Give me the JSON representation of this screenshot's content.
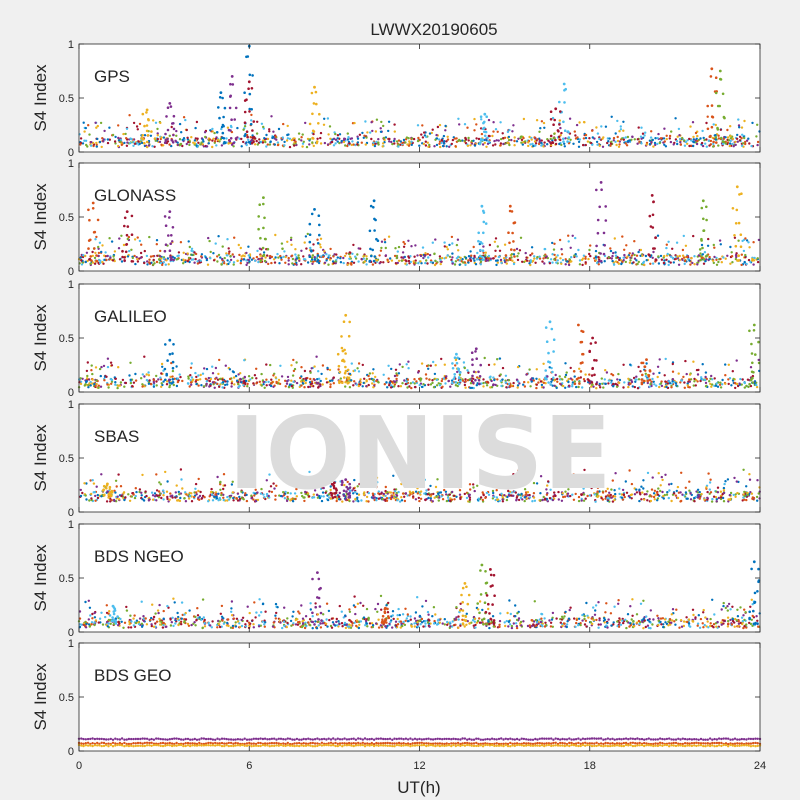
{
  "chart_data": {
    "type": "scatter",
    "title": "LWWX20190605",
    "xlabel": "UT(h)",
    "ylabel": "S4 Index",
    "xlim": [
      0,
      24
    ],
    "xticks": [
      "0",
      "6",
      "12",
      "18",
      "24"
    ],
    "ylim": [
      0,
      1
    ],
    "yticks": [
      "0",
      "0.5",
      "1"
    ],
    "grid": false,
    "watermark": "IONISE",
    "colors": [
      "#0072BD",
      "#D95319",
      "#EDB120",
      "#7E2F8E",
      "#77AC30",
      "#4DBEEE",
      "#A2142F"
    ],
    "panels": [
      {
        "name": "GPS",
        "baseline": 0.09,
        "spikes": [
          [
            6.0,
            0.98
          ],
          [
            5.4,
            0.7
          ],
          [
            6.0,
            0.65
          ],
          [
            8.3,
            0.6
          ],
          [
            17.1,
            0.63
          ],
          [
            22.3,
            0.77
          ],
          [
            22.6,
            0.75
          ],
          [
            5.0,
            0.55
          ],
          [
            3.2,
            0.45
          ],
          [
            16.8,
            0.4
          ],
          [
            2.4,
            0.39
          ],
          [
            14.3,
            0.35
          ]
        ]
      },
      {
        "name": "GLONASS",
        "baseline": 0.1,
        "spikes": [
          [
            0.5,
            0.63
          ],
          [
            6.5,
            0.68
          ],
          [
            10.4,
            0.65
          ],
          [
            18.4,
            0.82
          ],
          [
            20.2,
            0.7
          ],
          [
            23.2,
            0.78
          ],
          [
            14.2,
            0.6
          ],
          [
            15.2,
            0.6
          ],
          [
            22.0,
            0.65
          ],
          [
            8.3,
            0.57
          ],
          [
            3.2,
            0.55
          ],
          [
            1.7,
            0.55
          ]
        ]
      },
      {
        "name": "GALILEO",
        "baseline": 0.08,
        "spikes": [
          [
            9.4,
            0.71
          ],
          [
            16.6,
            0.65
          ],
          [
            17.6,
            0.62
          ],
          [
            23.8,
            0.62
          ],
          [
            3.2,
            0.48
          ],
          [
            14.0,
            0.4
          ],
          [
            18.1,
            0.5
          ],
          [
            9.3,
            0.38
          ],
          [
            13.3,
            0.35
          ],
          [
            20.0,
            0.3
          ]
        ]
      },
      {
        "name": "SBAS",
        "baseline": 0.14,
        "spikes": [
          [
            9.4,
            0.3
          ],
          [
            9.0,
            0.27
          ],
          [
            1.0,
            0.26
          ]
        ]
      },
      {
        "name": "BDS NGEO",
        "baseline": 0.08,
        "spikes": [
          [
            14.2,
            0.62
          ],
          [
            23.8,
            0.65
          ],
          [
            8.4,
            0.55
          ],
          [
            14.5,
            0.58
          ],
          [
            13.6,
            0.45
          ],
          [
            1.2,
            0.24
          ],
          [
            10.8,
            0.22
          ]
        ]
      },
      {
        "name": "BDS GEO",
        "baseline": 0.1,
        "spikes": []
      }
    ],
    "geo_levels": [
      {
        "color": "#7E2F8E",
        "value": 0.11
      },
      {
        "color": "#D95319",
        "value": 0.07
      },
      {
        "color": "#EDB120",
        "value": 0.05
      }
    ]
  }
}
